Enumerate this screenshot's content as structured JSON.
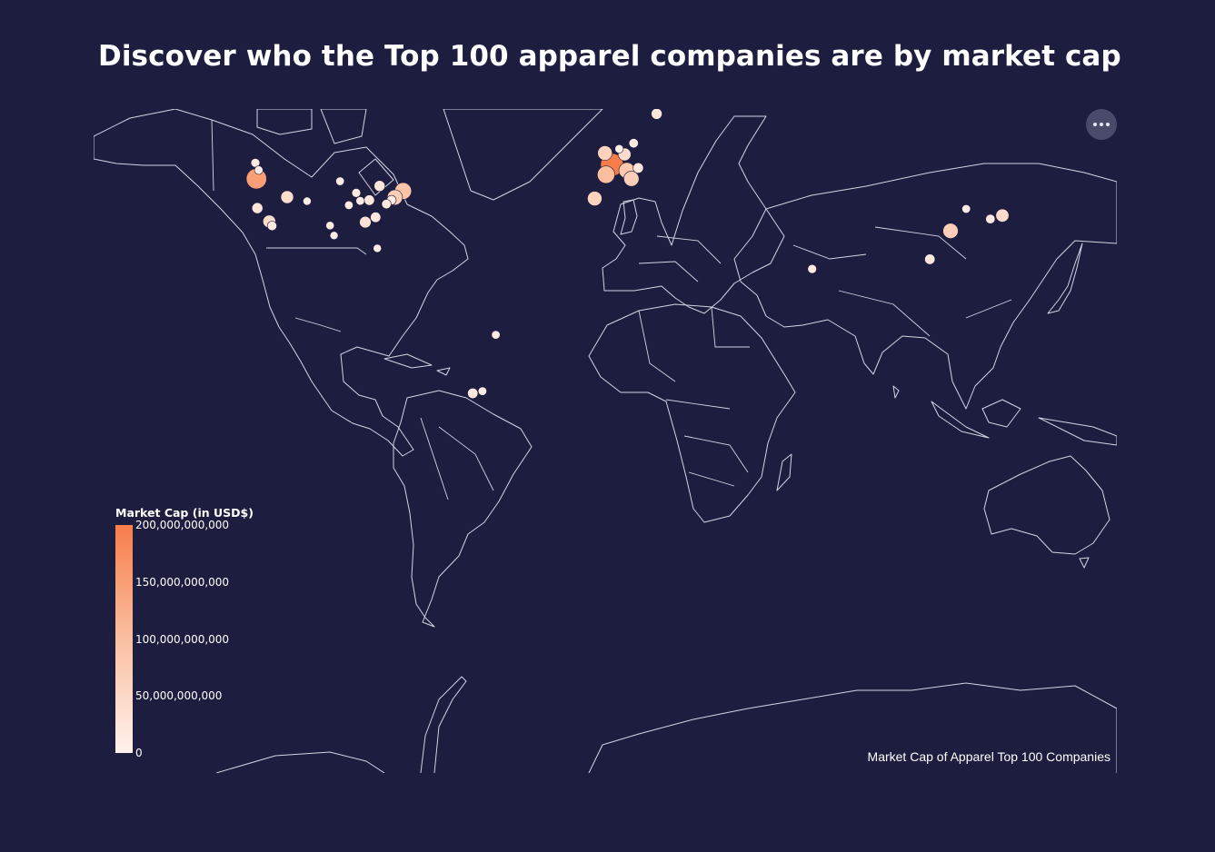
{
  "title": "Discover who the Top 100 apparel companies are by market cap",
  "caption": "Market Cap of Apparel Top 100 Companies",
  "menu_icon": "more-horizontal-icon",
  "colors": {
    "background": "#1d1d3f",
    "outline": "#d4d4e4",
    "scale_high": "#f87d4a",
    "scale_mid": "#fbbfa0",
    "scale_low": "#fff1ec"
  },
  "legend": {
    "title": "Market Cap (in USD$)",
    "ticks": [
      {
        "label": "200,000,000,000",
        "value": 200000000000
      },
      {
        "label": "150,000,000,000",
        "value": 150000000000
      },
      {
        "label": "100,000,000,000",
        "value": 100000000000
      },
      {
        "label": "50,000,000,000",
        "value": 50000000000
      },
      {
        "label": "0",
        "value": 0
      }
    ]
  },
  "chart_data": {
    "type": "proportional-symbol-map",
    "projection": "mercator",
    "color_scale": {
      "min": 0,
      "max": 200000000000
    },
    "points": [
      {
        "lon": -122.7,
        "lat": 45.5,
        "mc": 150000000000
      },
      {
        "lon": -122.4,
        "lat": 37.8,
        "mc": 25000000000
      },
      {
        "lon": -118.2,
        "lat": 34.0,
        "mc": 40000000000
      },
      {
        "lon": -117.2,
        "lat": 32.7,
        "mc": 15000000000
      },
      {
        "lon": -123.1,
        "lat": 49.3,
        "mc": 12000000000
      },
      {
        "lon": -121.9,
        "lat": 47.6,
        "mc": 10000000000
      },
      {
        "lon": -111.9,
        "lat": 40.8,
        "mc": 40000000000
      },
      {
        "lon": -104.9,
        "lat": 39.7,
        "mc": 8000000000
      },
      {
        "lon": -96.8,
        "lat": 32.8,
        "mc": 9000000000
      },
      {
        "lon": -95.4,
        "lat": 29.8,
        "mc": 8000000000
      },
      {
        "lon": -87.6,
        "lat": 41.9,
        "mc": 12000000000
      },
      {
        "lon": -84.4,
        "lat": 33.8,
        "mc": 30000000000
      },
      {
        "lon": -80.8,
        "lat": 35.2,
        "mc": 20000000000
      },
      {
        "lon": -80.2,
        "lat": 25.8,
        "mc": 8000000000
      },
      {
        "lon": -71.1,
        "lat": 42.4,
        "mc": 90000000000
      },
      {
        "lon": -74.0,
        "lat": 40.7,
        "mc": 70000000000
      },
      {
        "lon": -75.2,
        "lat": 40.0,
        "mc": 15000000000
      },
      {
        "lon": -77.0,
        "lat": 38.9,
        "mc": 15000000000
      },
      {
        "lon": -83.0,
        "lat": 40.0,
        "mc": 20000000000
      },
      {
        "lon": -86.2,
        "lat": 39.8,
        "mc": 10000000000
      },
      {
        "lon": -90.2,
        "lat": 38.6,
        "mc": 10000000000
      },
      {
        "lon": -93.3,
        "lat": 44.9,
        "mc": 10000000000
      },
      {
        "lon": -79.4,
        "lat": 43.7,
        "mc": 25000000000
      },
      {
        "lon": 2.35,
        "lat": 48.86,
        "mc": 200000000000
      },
      {
        "lon": 0.3,
        "lat": 46.5,
        "mc": 100000000000
      },
      {
        "lon": -3.7,
        "lat": 40.4,
        "mc": 60000000000
      },
      {
        "lon": 7.6,
        "lat": 47.5,
        "mc": 80000000000
      },
      {
        "lon": 9.2,
        "lat": 45.5,
        "mc": 70000000000
      },
      {
        "lon": 6.8,
        "lat": 51.2,
        "mc": 40000000000
      },
      {
        "lon": 10.0,
        "lat": 53.6,
        "mc": 15000000000
      },
      {
        "lon": -0.1,
        "lat": 51.5,
        "mc": 60000000000
      },
      {
        "lon": 4.9,
        "lat": 52.4,
        "mc": 10000000000
      },
      {
        "lon": 18.1,
        "lat": 59.3,
        "mc": 25000000000
      },
      {
        "lon": 11.6,
        "lat": 48.1,
        "mc": 20000000000
      },
      {
        "lon": 121.5,
        "lat": 31.2,
        "mc": 70000000000
      },
      {
        "lon": 114.2,
        "lat": 22.3,
        "mc": 20000000000
      },
      {
        "lon": 139.7,
        "lat": 35.7,
        "mc": 45000000000
      },
      {
        "lon": 135.5,
        "lat": 34.7,
        "mc": 15000000000
      },
      {
        "lon": 126.98,
        "lat": 37.57,
        "mc": 10000000000
      },
      {
        "lon": 72.8,
        "lat": 19.1,
        "mc": 12000000000
      },
      {
        "lon": -46.6,
        "lat": -23.6,
        "mc": 20000000000
      },
      {
        "lon": -43.2,
        "lat": -22.9,
        "mc": 10000000000
      },
      {
        "lon": -38.5,
        "lat": -3.7,
        "mc": 10000000000
      }
    ]
  }
}
